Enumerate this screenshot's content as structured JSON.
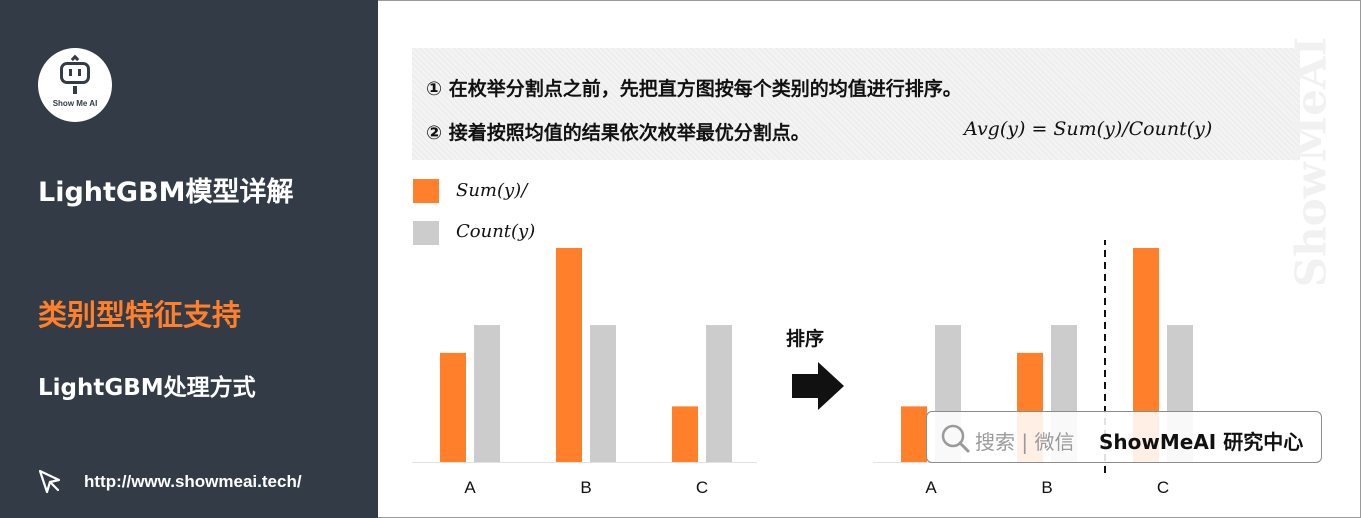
{
  "sidebar": {
    "logo_text": "Show Me AI",
    "title": "LightGBM模型详解",
    "subtitle": "类别型特征支持",
    "subtitle2": "LightGBM处理方式",
    "url": "http://www.showmeai.tech/"
  },
  "steps": {
    "step1": "① 在枚举分割点之前，先把直方图按每个类别的均值进行排序。",
    "step2": "② 接着按照均值的结果依次枚举最优分割点。",
    "formula": "Avg(y) = Sum(y)/Count(y)"
  },
  "watermark": {
    "text": "ShowMeAI"
  },
  "legend": {
    "sum_label": "Sum(y)/",
    "count_label": "Count(y)"
  },
  "sort_label": "排序",
  "search_badge": {
    "search_text": "搜索 | 微信",
    "brand": "ShowMeAI 研究中心"
  },
  "colors": {
    "sidebar_bg": "#333b47",
    "accent_orange": "#ff7f2a",
    "gray_bar": "#cccccc"
  },
  "chart_data": [
    {
      "type": "bar",
      "categories": [
        "A",
        "B",
        "C"
      ],
      "series": [
        {
          "name": "Sum(y)/",
          "values": [
            0.51,
            1.0,
            0.26
          ]
        },
        {
          "name": "Count(y)",
          "values": [
            0.64,
            0.64,
            0.64
          ]
        }
      ],
      "ylim": [
        0,
        1.0
      ]
    },
    {
      "type": "bar",
      "categories": [
        "A",
        "B",
        "C"
      ],
      "series": [
        {
          "name": "Sum(y)/",
          "values": [
            0.26,
            0.51,
            1.0
          ]
        },
        {
          "name": "Count(y)",
          "values": [
            0.64,
            0.64,
            0.64
          ]
        }
      ],
      "ylim": [
        0,
        1.0
      ],
      "split_after_category": "B"
    }
  ]
}
